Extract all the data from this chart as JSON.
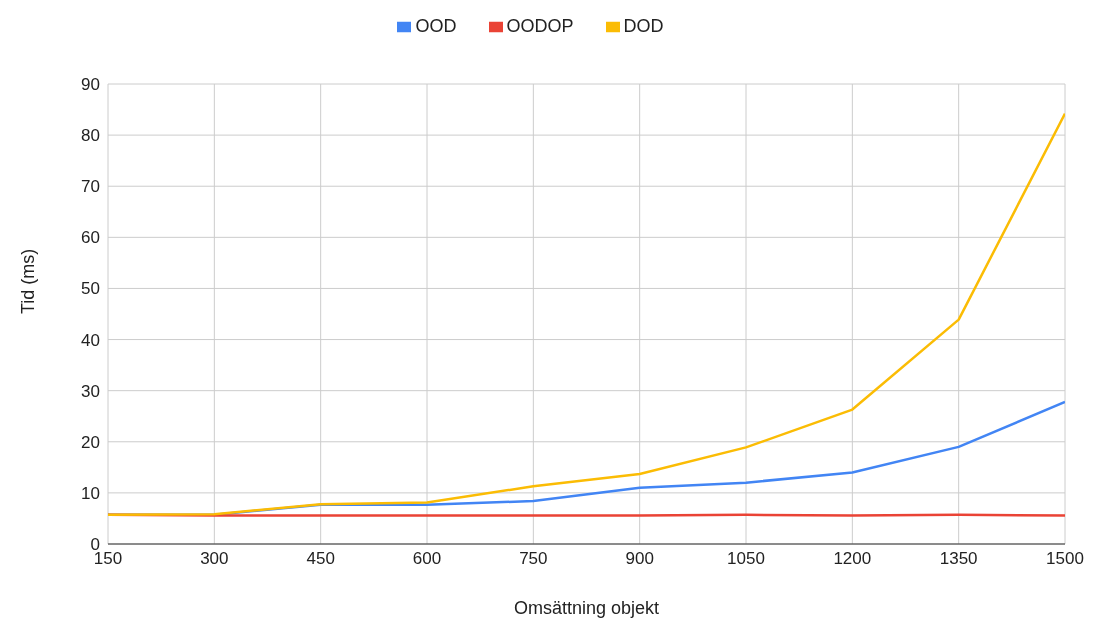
{
  "chart_data": {
    "type": "line",
    "xlabel": "Omsättning objekt",
    "ylabel": "Tid (ms)",
    "x": [
      150,
      300,
      450,
      600,
      750,
      900,
      1050,
      1200,
      1350,
      1500
    ],
    "series": [
      {
        "name": "OOD",
        "color": "#4285f4",
        "values": [
          5.7,
          5.7,
          7.7,
          7.7,
          8.4,
          11,
          12,
          14,
          19,
          27.8
        ]
      },
      {
        "name": "OODOP",
        "color": "#ea4335",
        "values": [
          5.7,
          5.6,
          5.6,
          5.6,
          5.6,
          5.6,
          5.7,
          5.6,
          5.7,
          5.6
        ]
      },
      {
        "name": "DOD",
        "color": "#fbbc04",
        "values": [
          5.7,
          5.8,
          7.8,
          8.1,
          11.3,
          13.7,
          18.9,
          26.3,
          43.9,
          84.2
        ]
      }
    ],
    "xlim": [
      150,
      1500
    ],
    "xticks": [
      150,
      300,
      450,
      600,
      750,
      900,
      1050,
      1200,
      1350,
      1500
    ],
    "ylim": [
      0,
      90
    ],
    "yticks": [
      0,
      10,
      20,
      30,
      40,
      50,
      60,
      70,
      80,
      90
    ],
    "grid": true,
    "legend": "top",
    "marker": "none",
    "line_style": "solid"
  }
}
